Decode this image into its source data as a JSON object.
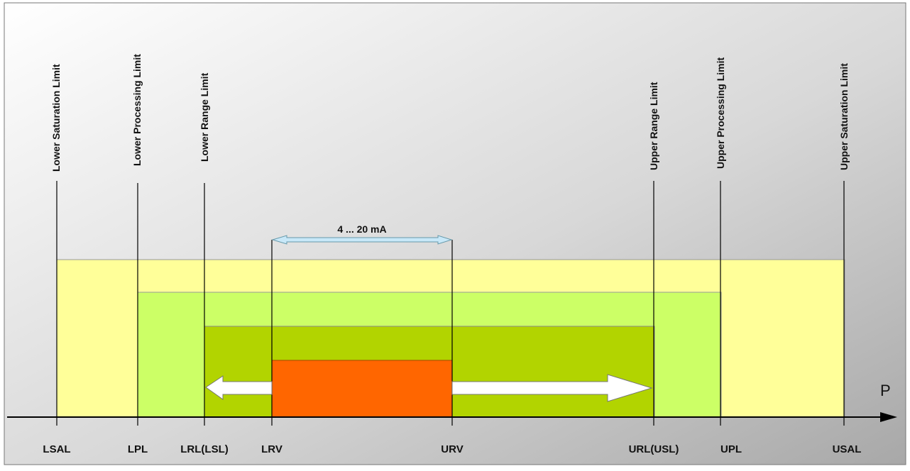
{
  "diagram": {
    "limits": [
      {
        "id": "lsal",
        "vertical_label": "Lower Saturation Limit",
        "axis_label": "LSAL"
      },
      {
        "id": "lpl",
        "vertical_label": "Lower Processing Limit",
        "axis_label": "LPL"
      },
      {
        "id": "lrl",
        "vertical_label": "Lower Range Limit",
        "axis_label": "LRL(LSL)"
      },
      {
        "id": "lrv",
        "vertical_label": "",
        "axis_label": "LRV"
      },
      {
        "id": "urv",
        "vertical_label": "",
        "axis_label": "URV"
      },
      {
        "id": "url",
        "vertical_label": "Upper Range Limit",
        "axis_label": "URL(USL)"
      },
      {
        "id": "upl",
        "vertical_label": "Upper Processing Limit",
        "axis_label": "UPL"
      },
      {
        "id": "usal",
        "vertical_label": "Upper Saturation Limit",
        "axis_label": "USAL"
      }
    ],
    "current_span_label": "4 ... 20 mA",
    "axis_variable": "P",
    "colors": {
      "saturation_band": "#ffff99",
      "processing_band": "#ccff66",
      "range_band": "#b2d400",
      "span_block": "#ff6600",
      "arrow_fill": "#ffffff",
      "span_arrow": "#c8e8f8"
    }
  }
}
